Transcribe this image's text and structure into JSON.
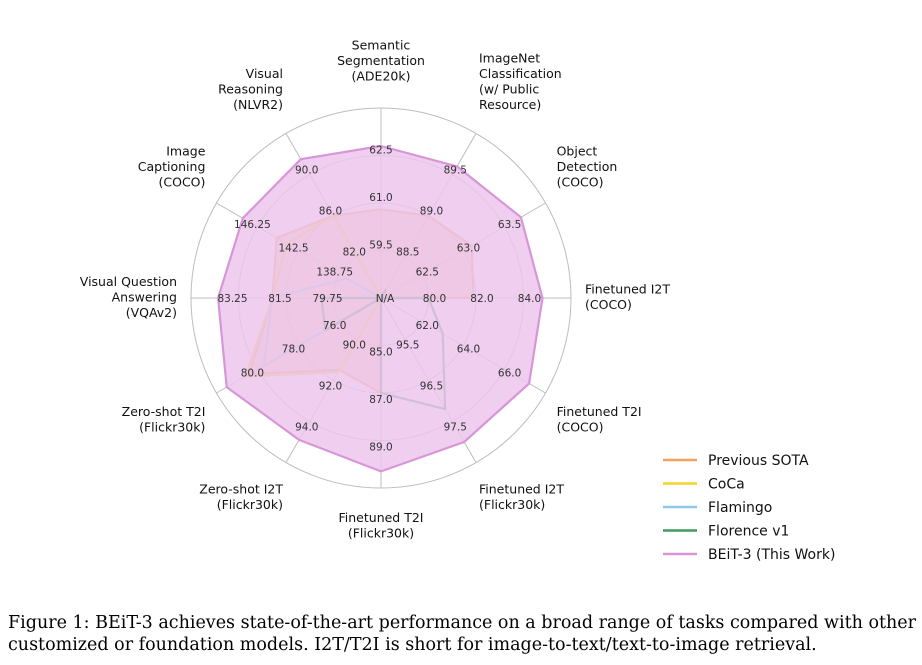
{
  "chart_data": {
    "type": "radar",
    "axes": [
      {
        "label": [
          "Semantic",
          "Segmentation",
          "(ADE20k)"
        ],
        "ticks": [
          "59.5",
          "61.0",
          "62.5"
        ]
      },
      {
        "label": [
          "ImageNet",
          "Classification",
          "(w/ Public",
          "Resource)"
        ],
        "ticks": [
          "88.5",
          "89.0",
          "89.5"
        ]
      },
      {
        "label": [
          "Object",
          "Detection",
          "(COCO)"
        ],
        "ticks": [
          "62.5",
          "63.0",
          "63.5"
        ]
      },
      {
        "label": [
          "Finetuned I2T",
          "(COCO)"
        ],
        "ticks": [
          "80.0",
          "82.0",
          "84.0"
        ]
      },
      {
        "label": [
          "Finetuned T2I",
          "(COCO)"
        ],
        "ticks": [
          "62.0",
          "64.0",
          "66.0"
        ]
      },
      {
        "label": [
          "Finetuned I2T",
          "(Flickr30k)"
        ],
        "ticks": [
          "95.5",
          "96.5",
          "97.5"
        ]
      },
      {
        "label": [
          "Finetuned T2I",
          "(Flickr30k)"
        ],
        "ticks": [
          "85.0",
          "87.0",
          "89.0"
        ]
      },
      {
        "label": [
          "Zero-shot I2T",
          "(Flickr30k)"
        ],
        "ticks": [
          "90.0",
          "92.0",
          "94.0"
        ]
      },
      {
        "label": [
          "Zero-shot T2I",
          "(Flickr30k)"
        ],
        "ticks": [
          "76.0",
          "78.0",
          "80.0"
        ]
      },
      {
        "label": [
          "Visual Question",
          "Answering",
          "(VQAv2)"
        ],
        "ticks": [
          "79.75",
          "81.5",
          "83.25"
        ]
      },
      {
        "label": [
          "Image",
          "Captioning",
          "(COCO)"
        ],
        "ticks": [
          "138.75",
          "142.5",
          "146.25"
        ]
      },
      {
        "label": [
          "Visual",
          "Reasoning",
          "(NLVR2)"
        ],
        "ticks": [
          "82.0",
          "86.0",
          "90.0"
        ]
      }
    ],
    "center_label": "N/A",
    "series": [
      {
        "name": "Previous SOTA",
        "color": "#f0a460",
        "fill": "#f2b27a",
        "fill_opacity": 0.55,
        "values": [
          60.8,
          89.0,
          63.1,
          81.9,
          null,
          null,
          87.0,
          91.5,
          80.4,
          82.0,
          144.5,
          86.0
        ]
      },
      {
        "name": "CoCa",
        "color": "#f5d327",
        "fill": "none",
        "fill_opacity": 0,
        "values": [
          null,
          null,
          null,
          null,
          null,
          null,
          null,
          91.6,
          80.6,
          82.0,
          143.6,
          86.0
        ]
      },
      {
        "name": "Flamingo",
        "color": "#8fcbe8",
        "fill": "none",
        "fill_opacity": 0,
        "values": [
          null,
          null,
          null,
          null,
          null,
          null,
          null,
          null,
          79.7,
          82.0,
          138.1,
          null
        ]
      },
      {
        "name": "Florence v1",
        "color": "#3e9a5d",
        "fill": "none",
        "fill_opacity": 0,
        "values": [
          null,
          88.1,
          null,
          80.0,
          63.0,
          97.2,
          87.0,
          null,
          76.7,
          80.2,
          null,
          null
        ]
      },
      {
        "name": "BEiT-3 (This Work)",
        "color": "#d896d8",
        "fill": "#ecc6ec",
        "fill_opacity": 0.85,
        "values": [
          62.8,
          89.6,
          63.7,
          84.8,
          67.2,
          98.0,
          90.3,
          94.9,
          81.5,
          84.0,
          147.6,
          91.5
        ]
      }
    ],
    "legend_position": "bottom-right",
    "grid": true
  },
  "caption": {
    "prefix": "Figure 1: ",
    "text": "BEiT-3 achieves state-of-the-art performance on a broad range of tasks compared with other customized or foundation models. I2T/T2I is short for image-to-text/text-to-image retrieval."
  }
}
